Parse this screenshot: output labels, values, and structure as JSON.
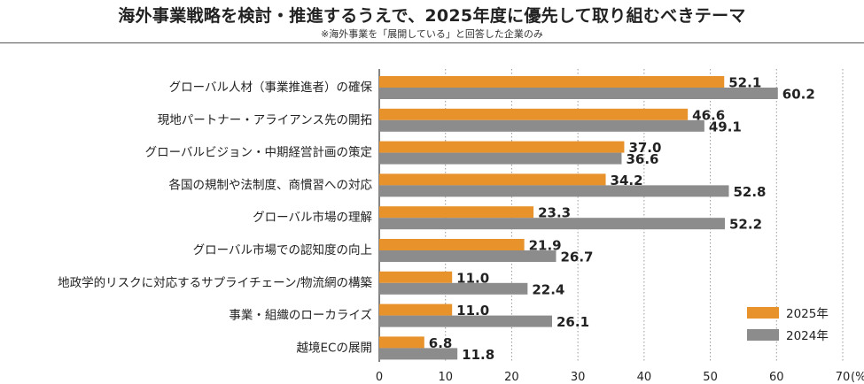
{
  "title": "海外事業戦略を検討・推進するうえで、2025年度に優先して取り組むべきテーマ",
  "subtitle": "※海外事業を「展開している」と回答した企業のみ",
  "chart_data": {
    "type": "bar",
    "orientation": "horizontal",
    "categories": [
      "グローバル人材（事業推進者）の確保",
      "現地パートナー・アライアンス先の開拓",
      "グローバルビジョン・中期経営計画の策定",
      "各国の規制や法制度、商慣習への対応",
      "グローバル市場の理解",
      "グローバル市場での認知度の向上",
      "地政学的リスクに対応するサプライチェーン/物流網の構築",
      "事業・組織のローカライズ",
      "越境ECの展開"
    ],
    "series": [
      {
        "name": "2025年",
        "color": "#E8922B",
        "values": [
          52.1,
          46.6,
          37.0,
          34.2,
          23.3,
          21.9,
          11.0,
          11.0,
          6.8
        ],
        "labels": [
          "52.1",
          "46.6",
          "37.0",
          "34.2",
          "23.3",
          "21.9",
          "11.0",
          "11.0",
          "6.8"
        ]
      },
      {
        "name": "2024年",
        "color": "#8C8C8C",
        "values": [
          60.2,
          49.1,
          36.6,
          52.8,
          52.2,
          26.7,
          22.4,
          26.1,
          11.8
        ],
        "labels": [
          "60.2",
          "49.1",
          "36.6",
          "52.8",
          "52.2",
          "26.7",
          "22.4",
          "26.1",
          "11.8"
        ]
      }
    ],
    "xlim": [
      0,
      70
    ],
    "xticks": [
      "0",
      "10",
      "20",
      "30",
      "40",
      "50",
      "60",
      "70"
    ],
    "x_unit": "(%)",
    "grid": "vertical dotted",
    "legend_position": "bottom-right"
  }
}
